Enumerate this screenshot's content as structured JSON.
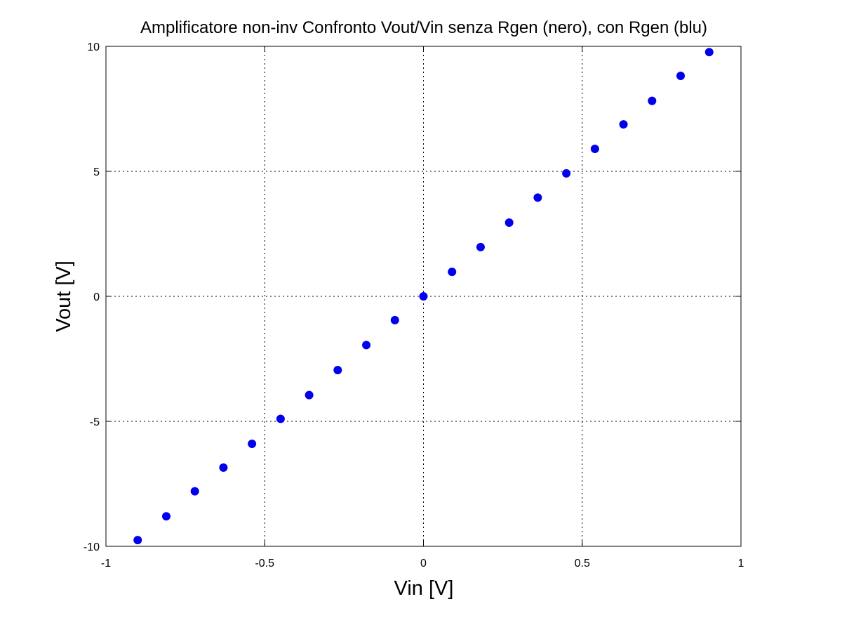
{
  "chart_data": {
    "type": "scatter",
    "title": "Amplificatore non-inv Confronto Vout/Vin senza Rgen (nero), con Rgen (blu)",
    "xlabel": "Vin [V]",
    "ylabel": "Vout [V]",
    "xlim": [
      -1,
      1
    ],
    "ylim": [
      -10,
      10
    ],
    "xticks": [
      -1,
      -0.5,
      0,
      0.5,
      1
    ],
    "xtick_labels": [
      "-1",
      "-0.5",
      "0",
      "0.5",
      "1"
    ],
    "yticks": [
      -10,
      -5,
      0,
      5,
      10
    ],
    "ytick_labels": [
      "-10",
      "-5",
      "0",
      "5",
      "10"
    ],
    "grid": true,
    "series": [
      {
        "color": "#0000ee",
        "x": [
          -0.9,
          -0.81,
          -0.72,
          -0.63,
          -0.54,
          -0.45,
          -0.36,
          -0.27,
          -0.18,
          -0.09,
          0,
          0.09,
          0.18,
          0.27,
          0.36,
          0.45,
          0.54,
          0.63,
          0.72,
          0.81,
          0.9
        ],
        "y": [
          -9.75,
          -8.8,
          -7.8,
          -6.85,
          -5.9,
          -4.9,
          -3.95,
          -2.95,
          -1.95,
          -0.95,
          0,
          0.98,
          1.97,
          2.95,
          3.95,
          4.92,
          5.9,
          6.88,
          7.82,
          8.82,
          9.77
        ]
      }
    ]
  }
}
